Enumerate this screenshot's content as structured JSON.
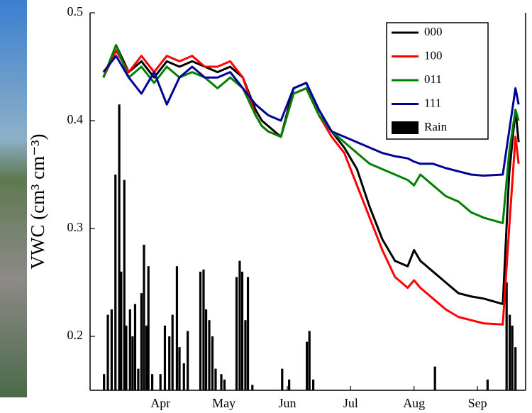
{
  "chart_data": {
    "type": "line",
    "y_label": "VWC (cm³ cm⁻³)",
    "xlim": [
      3.39,
      10.26
    ],
    "ylim": [
      0.15,
      0.5
    ],
    "yticks": [
      0.2,
      0.3,
      0.4,
      0.5
    ],
    "xticks": [
      {
        "value": 4.5,
        "label": "Apr"
      },
      {
        "value": 5.5,
        "label": "May"
      },
      {
        "value": 6.5,
        "label": "Jun"
      },
      {
        "value": 7.5,
        "label": "Jul"
      },
      {
        "value": 8.5,
        "label": "Aug"
      },
      {
        "value": 9.5,
        "label": "Sep"
      }
    ],
    "legend": "upper right",
    "x": [
      3.6,
      3.8,
      4.0,
      4.2,
      4.4,
      4.6,
      4.8,
      5.0,
      5.2,
      5.4,
      5.6,
      5.8,
      6.0,
      6.1,
      6.2,
      6.4,
      6.6,
      6.8,
      7.0,
      7.2,
      7.4,
      7.6,
      7.8,
      8.0,
      8.2,
      8.4,
      8.5,
      8.6,
      8.8,
      9.0,
      9.2,
      9.4,
      9.6,
      9.9,
      10.0,
      10.1,
      10.15
    ],
    "series": [
      {
        "name": "000",
        "color": "#000000",
        "values": [
          0.44,
          0.47,
          0.445,
          0.455,
          0.44,
          0.455,
          0.45,
          0.455,
          0.45,
          0.445,
          0.45,
          0.44,
          0.41,
          0.4,
          0.395,
          0.385,
          0.43,
          0.435,
          0.41,
          0.39,
          0.375,
          0.355,
          0.32,
          0.29,
          0.27,
          0.265,
          0.28,
          0.27,
          0.26,
          0.25,
          0.24,
          0.237,
          0.235,
          0.23,
          0.35,
          0.41,
          0.38
        ]
      },
      {
        "name": "100",
        "color": "#ff0000",
        "values": [
          0.44,
          0.465,
          0.445,
          0.46,
          0.445,
          0.46,
          0.455,
          0.46,
          0.45,
          0.45,
          0.455,
          0.44,
          0.405,
          0.395,
          0.39,
          0.385,
          0.425,
          0.43,
          0.405,
          0.385,
          0.37,
          0.34,
          0.31,
          0.28,
          0.255,
          0.245,
          0.252,
          0.245,
          0.235,
          0.225,
          0.218,
          0.215,
          0.212,
          0.211,
          0.3,
          0.385,
          0.36
        ]
      },
      {
        "name": "011",
        "color": "#008000",
        "values": [
          0.44,
          0.47,
          0.44,
          0.45,
          0.435,
          0.45,
          0.44,
          0.445,
          0.44,
          0.43,
          0.44,
          0.43,
          0.405,
          0.395,
          0.39,
          0.385,
          0.425,
          0.43,
          0.405,
          0.39,
          0.38,
          0.37,
          0.36,
          0.355,
          0.35,
          0.345,
          0.34,
          0.35,
          0.34,
          0.33,
          0.325,
          0.315,
          0.31,
          0.305,
          0.37,
          0.41,
          0.4
        ]
      },
      {
        "name": "111",
        "color": "#000099",
        "values": [
          0.445,
          0.46,
          0.44,
          0.425,
          0.445,
          0.415,
          0.44,
          0.45,
          0.44,
          0.44,
          0.445,
          0.43,
          0.415,
          0.41,
          0.405,
          0.4,
          0.43,
          0.435,
          0.41,
          0.39,
          0.385,
          0.38,
          0.375,
          0.37,
          0.367,
          0.365,
          0.362,
          0.36,
          0.36,
          0.356,
          0.353,
          0.35,
          0.349,
          0.35,
          0.39,
          0.43,
          0.415
        ]
      },
      {
        "name": "Rain",
        "color": "#000000",
        "type": "bar",
        "x": [
          3.61,
          3.67,
          3.73,
          3.79,
          3.85,
          3.88,
          3.93,
          3.96,
          4.02,
          4.06,
          4.1,
          4.15,
          4.2,
          4.24,
          4.28,
          4.31,
          4.37,
          4.5,
          4.57,
          4.64,
          4.69,
          4.76,
          4.8,
          4.87,
          4.93,
          5.13,
          5.18,
          5.22,
          5.27,
          5.32,
          5.37,
          5.46,
          5.51,
          5.7,
          5.75,
          5.79,
          5.84,
          5.88,
          5.95,
          6.42,
          6.53,
          6.81,
          6.85,
          6.91,
          8.83,
          9.66,
          9.96,
          10.01,
          10.05,
          10.1
        ],
        "values": [
          0.165,
          0.22,
          0.225,
          0.35,
          0.415,
          0.26,
          0.345,
          0.21,
          0.225,
          0.2,
          0.23,
          0.17,
          0.24,
          0.285,
          0.21,
          0.265,
          0.165,
          0.165,
          0.21,
          0.2,
          0.22,
          0.265,
          0.19,
          0.175,
          0.205,
          0.26,
          0.262,
          0.225,
          0.215,
          0.2,
          0.17,
          0.165,
          0.16,
          0.255,
          0.27,
          0.26,
          0.215,
          0.255,
          0.155,
          0.17,
          0.16,
          0.195,
          0.205,
          0.16,
          0.172,
          0.16,
          0.25,
          0.22,
          0.21,
          0.19
        ]
      }
    ]
  }
}
